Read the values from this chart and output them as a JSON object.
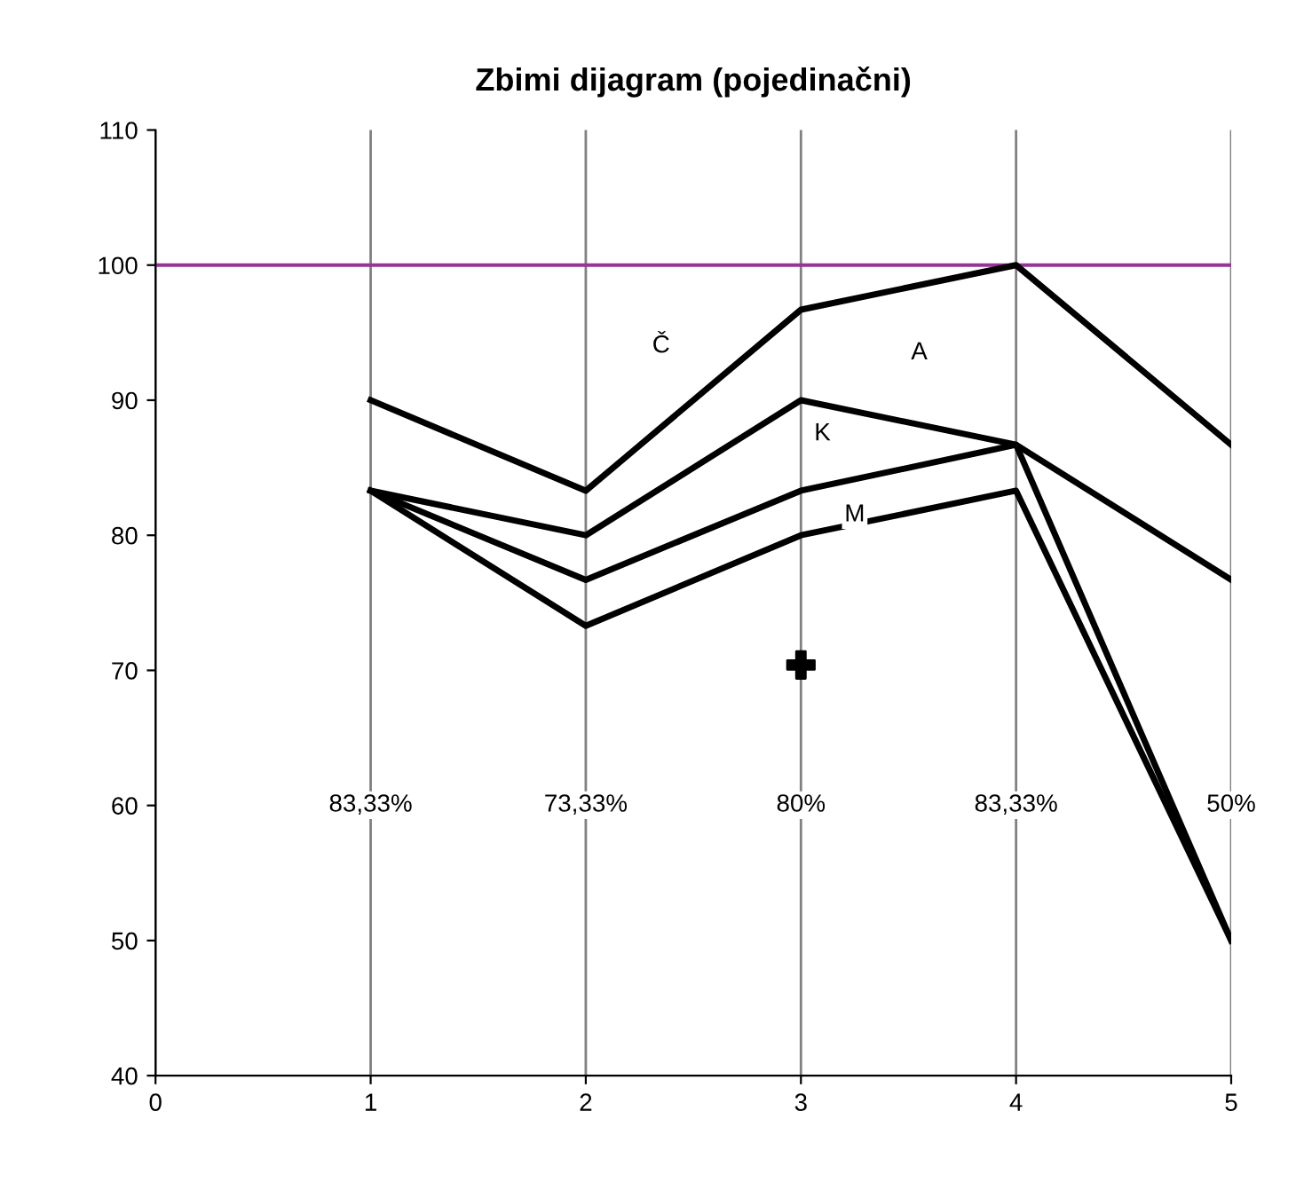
{
  "chart_data": {
    "type": "line",
    "title": "Zbimi dijagram (pojedinačni)",
    "x": [
      1,
      2,
      3,
      4,
      5
    ],
    "series": [
      {
        "color": "#000000",
        "values": [
          90,
          83.3,
          96.7,
          100,
          86.7
        ]
      },
      {
        "color": "#000000",
        "values": [
          83.3,
          80,
          90,
          86.7,
          76.7
        ]
      },
      {
        "color": "#000000",
        "values": [
          83.3,
          76.7,
          83.3,
          86.7,
          50
        ]
      },
      {
        "color": "#000000",
        "values": [
          83.3,
          73.3,
          80,
          83.3,
          50
        ]
      },
      {
        "type": "scatter",
        "color": "#000000",
        "marker": "cross",
        "x": [
          3
        ],
        "values": [
          70.4
        ]
      }
    ],
    "xlim": [
      0,
      5
    ],
    "xticks": [
      0,
      1,
      2,
      3,
      4,
      5
    ],
    "ylim": [
      40,
      110
    ],
    "yticks": [
      40,
      50,
      60,
      70,
      80,
      90,
      100,
      110
    ],
    "grid": "x",
    "marker": "none",
    "line_style": "solid",
    "ref_lines": [
      {
        "axis": "y",
        "value": 100,
        "color": "#993399"
      }
    ],
    "annotations": [
      {
        "text": "Č",
        "x": 2.35,
        "y": 94
      },
      {
        "text": "A",
        "x": 3.55,
        "y": 93.5
      },
      {
        "text": "K",
        "x": 3.1,
        "y": 87.5
      },
      {
        "text": "M",
        "x": 3.25,
        "y": 81.5
      },
      "83,33%",
      "73,33%",
      "80%",
      "83,33%",
      "50%"
    ]
  }
}
